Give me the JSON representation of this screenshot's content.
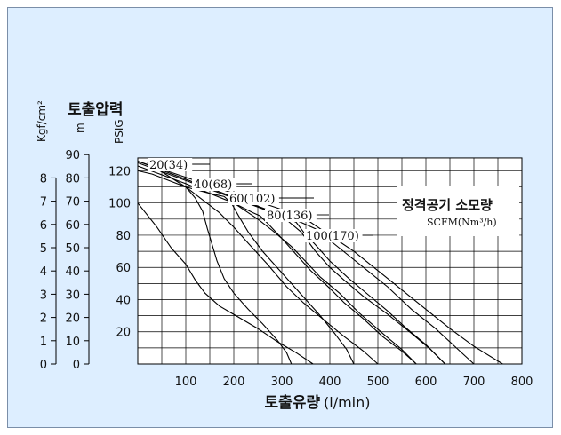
{
  "chart_data": {
    "type": "line",
    "title": "토출압력",
    "xlabel_main": "토출유량",
    "xlabel_unit": "(l/min)",
    "x_ticks": [
      100,
      200,
      300,
      400,
      500,
      600,
      700,
      800
    ],
    "xlim": [
      0,
      800
    ],
    "y_axes": {
      "kgf": {
        "label": "Kgf/cm²",
        "ticks": [
          0,
          1,
          2,
          3,
          4,
          5,
          6,
          7,
          8
        ]
      },
      "m": {
        "label": "m",
        "ticks": [
          0,
          10,
          20,
          30,
          40,
          50,
          60,
          70,
          80,
          90
        ]
      },
      "psig": {
        "label": "PSIG",
        "ticks": [
          20,
          40,
          60,
          80,
          100,
          120
        ]
      }
    },
    "ylim_psig": [
      0,
      128
    ],
    "legend_title": "정격공기 소모량",
    "legend_unit": "SCFM(Nm³/h)",
    "air_curves": [
      {
        "label": "20(34)",
        "points": [
          [
            0,
            100
          ],
          [
            40,
            85
          ],
          [
            70,
            72
          ],
          [
            100,
            62
          ],
          [
            120,
            52
          ],
          [
            140,
            44
          ],
          [
            170,
            36
          ],
          [
            210,
            29
          ],
          [
            250,
            22
          ],
          [
            290,
            14
          ],
          [
            330,
            7
          ],
          [
            365,
            0
          ]
        ]
      },
      {
        "label": "40(68)",
        "points": [
          [
            0,
            120
          ],
          [
            30,
            118
          ],
          [
            100,
            110
          ],
          [
            170,
            94
          ],
          [
            200,
            85
          ],
          [
            230,
            75
          ],
          [
            270,
            62
          ],
          [
            310,
            48
          ],
          [
            345,
            38
          ],
          [
            385,
            28
          ],
          [
            430,
            17
          ],
          [
            470,
            8
          ],
          [
            500,
            0
          ]
        ]
      },
      {
        "label": "60(102)",
        "points": [
          [
            0,
            123
          ],
          [
            100,
            112
          ],
          [
            200,
            100
          ],
          [
            250,
            90
          ],
          [
            280,
            83
          ],
          [
            320,
            73
          ],
          [
            355,
            62
          ],
          [
            380,
            54
          ],
          [
            420,
            44
          ],
          [
            460,
            32
          ],
          [
            510,
            19
          ],
          [
            550,
            9
          ],
          [
            580,
            0
          ]
        ]
      },
      {
        "label": "80(136)",
        "points": [
          [
            0,
            125
          ],
          [
            300,
            92
          ],
          [
            340,
            82
          ],
          [
            370,
            70
          ],
          [
            400,
            60
          ],
          [
            430,
            52
          ],
          [
            470,
            42
          ],
          [
            520,
            31
          ],
          [
            570,
            19
          ],
          [
            610,
            9
          ],
          [
            640,
            0
          ]
        ]
      },
      {
        "label": "100(170)",
        "points": [
          [
            0,
            126
          ],
          [
            340,
            88
          ],
          [
            370,
            84
          ],
          [
            420,
            72
          ],
          [
            470,
            60
          ],
          [
            520,
            48
          ],
          [
            570,
            34
          ],
          [
            620,
            22
          ],
          [
            660,
            11
          ],
          [
            700,
            0
          ]
        ]
      }
    ],
    "pressure_curves": [
      {
        "points": [
          [
            20,
            125
          ],
          [
            100,
            110
          ],
          [
            120,
            103
          ],
          [
            135,
            95
          ],
          [
            145,
            84
          ],
          [
            155,
            74
          ],
          [
            165,
            64
          ],
          [
            180,
            53
          ],
          [
            200,
            44
          ],
          [
            230,
            34
          ],
          [
            260,
            25
          ],
          [
            290,
            15
          ],
          [
            310,
            7
          ],
          [
            320,
            0
          ]
        ]
      },
      {
        "points": [
          [
            100,
            110
          ],
          [
            150,
            106
          ],
          [
            180,
            104
          ],
          [
            195,
            100
          ],
          [
            210,
            92
          ],
          [
            230,
            82
          ],
          [
            260,
            70
          ],
          [
            290,
            60
          ],
          [
            320,
            50
          ],
          [
            350,
            40
          ],
          [
            380,
            30
          ],
          [
            410,
            19
          ],
          [
            435,
            9
          ],
          [
            450,
            0
          ]
        ]
      },
      {
        "points": [
          [
            200,
            100
          ],
          [
            240,
            94
          ],
          [
            255,
            92
          ],
          [
            275,
            86
          ],
          [
            300,
            78
          ],
          [
            330,
            68
          ],
          [
            360,
            58
          ],
          [
            400,
            47
          ],
          [
            430,
            38
          ],
          [
            470,
            28
          ],
          [
            510,
            17
          ],
          [
            550,
            8
          ],
          [
            580,
            0
          ]
        ]
      },
      {
        "points": [
          [
            300,
            92
          ],
          [
            330,
            88
          ],
          [
            345,
            82
          ],
          [
            370,
            74
          ],
          [
            400,
            64
          ],
          [
            440,
            53
          ],
          [
            480,
            43
          ],
          [
            520,
            33
          ],
          [
            560,
            22
          ],
          [
            600,
            12
          ],
          [
            640,
            0
          ]
        ]
      },
      {
        "points": [
          [
            0,
            126
          ],
          [
            300,
            96
          ],
          [
            350,
            90
          ],
          [
            400,
            80
          ],
          [
            450,
            70
          ],
          [
            500,
            58
          ],
          [
            550,
            46
          ],
          [
            600,
            34
          ],
          [
            650,
            22
          ],
          [
            700,
            11
          ],
          [
            760,
            0
          ]
        ]
      }
    ]
  }
}
